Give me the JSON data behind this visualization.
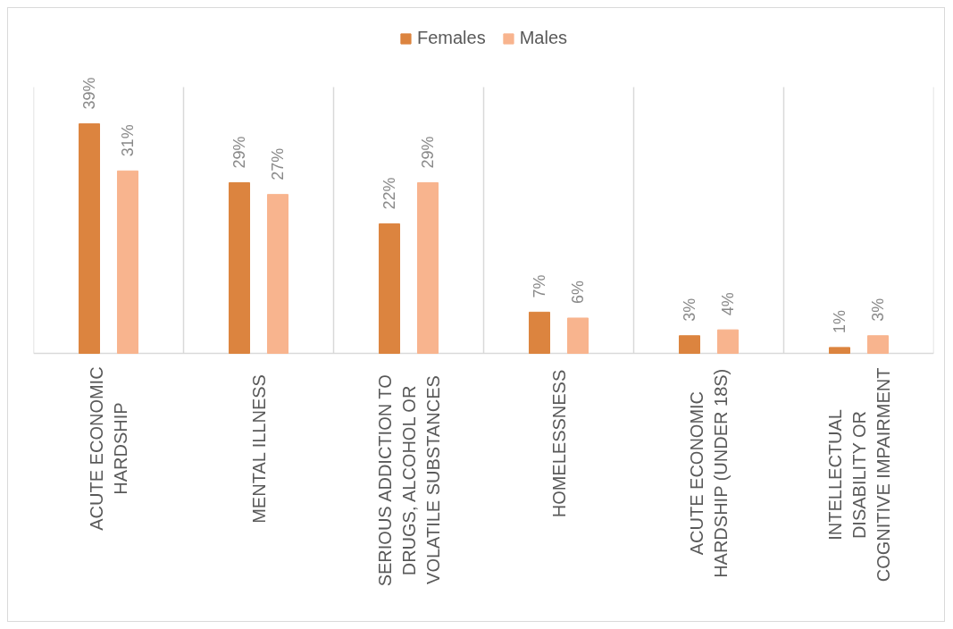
{
  "chart_data": {
    "type": "bar",
    "categories": [
      "ACUTE ECONOMIC HARDSHIP",
      "MENTAL ILLNESS",
      "SERIOUS ADDICTION TO DRUGS, ALCOHOL OR VOLATILE SUBSTANCES",
      "HOMELESSNESS",
      "ACUTE ECONOMIC HARDSHIP (UNDER 18S)",
      "INTELLECTUAL DISABILITY OR COGNITIVE IMPAIRMENT"
    ],
    "series": [
      {
        "name": "Females",
        "color": "#dc843f",
        "values": [
          39,
          29,
          22,
          7,
          3,
          1
        ],
        "value_labels": [
          "39%",
          "29%",
          "22%",
          "7%",
          "3%",
          "1%"
        ]
      },
      {
        "name": "Males",
        "color": "#f8b48e",
        "values": [
          31,
          27,
          29,
          6,
          4,
          3
        ],
        "value_labels": [
          "31%",
          "27%",
          "29%",
          "6%",
          "4%",
          "3%"
        ]
      }
    ],
    "legend": "top",
    "grid": "x",
    "tick_labels": "x"
  }
}
